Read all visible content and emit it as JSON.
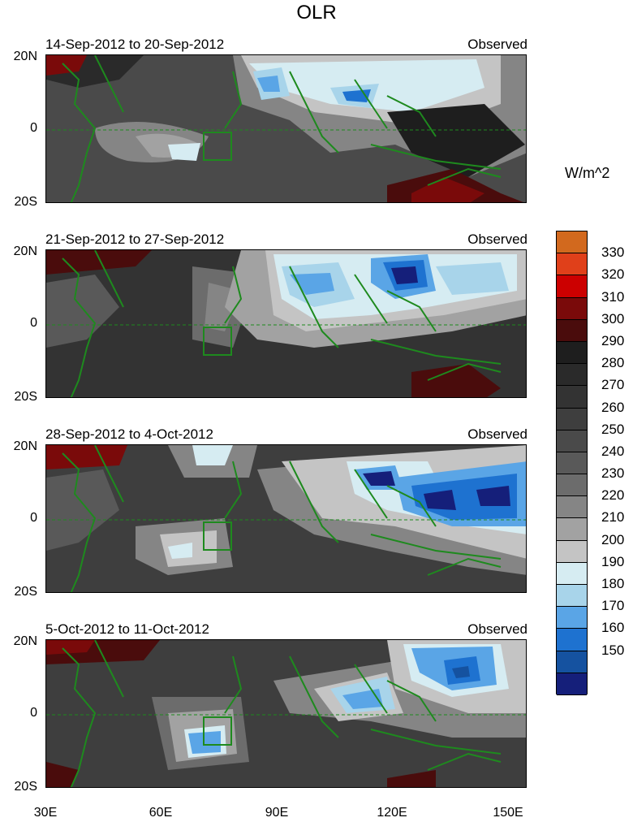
{
  "title": "OLR",
  "panels": [
    {
      "range": "14-Sep-2012 to 20-Sep-2012",
      "tag": "Observed"
    },
    {
      "range": "21-Sep-2012 to 27-Sep-2012",
      "tag": "Observed"
    },
    {
      "range": "28-Sep-2012 to 4-Oct-2012",
      "tag": "Observed"
    },
    {
      "range": "5-Oct-2012 to 11-Oct-2012",
      "tag": "Observed"
    }
  ],
  "lat_labels": [
    "20N",
    "0",
    "20S"
  ],
  "lon_labels": [
    "30E",
    "60E",
    "90E",
    "120E",
    "150E"
  ],
  "colorbar": {
    "title": "W/m^2",
    "levels": [
      "330",
      "320",
      "310",
      "300",
      "290",
      "280",
      "270",
      "260",
      "250",
      "240",
      "230",
      "220",
      "210",
      "200",
      "190",
      "180",
      "170",
      "160",
      "150"
    ],
    "colors": [
      "#d2691e",
      "#e0401a",
      "#cc0000",
      "#7a0a0a",
      "#4a0c0c",
      "#1e1e1e",
      "#2a2a2a",
      "#333333",
      "#3e3e3e",
      "#4a4a4a",
      "#595959",
      "#6c6c6c",
      "#858585",
      "#a2a2a2",
      "#c4c4c4",
      "#d6ecf2",
      "#a8d4ea",
      "#5aa5e6",
      "#1e72d0",
      "#1552a0",
      "#151f7a"
    ]
  }
}
